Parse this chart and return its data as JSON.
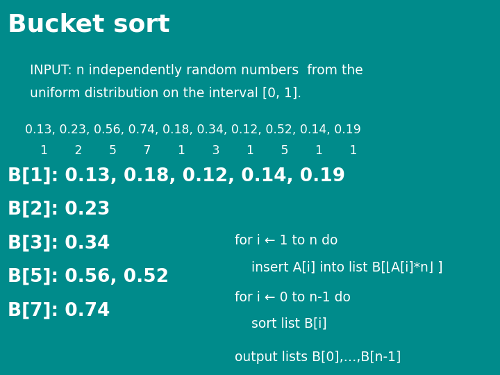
{
  "bg_color": "#008B8B",
  "title": "Bucket sort",
  "title_fontsize": 26,
  "input_line1": "INPUT: n independently random numbers  from the",
  "input_line2": "uniform distribution on the interval [0, 1].",
  "input_fontsize": 13.5,
  "numbers_line": "0.13, 0.23, 0.56, 0.74, 0.18, 0.34, 0.12, 0.52, 0.14, 0.19",
  "indices_line": "    1       2       5       7       1       3       1       5       1       1",
  "data_fontsize": 12.5,
  "bucket_lines": [
    "B[1]: 0.13, 0.18, 0.12, 0.14, 0.19",
    "B[2]: 0.23",
    "B[3]: 0.34",
    "B[5]: 0.56, 0.52",
    "B[7]: 0.74"
  ],
  "bucket_fontsize": 19,
  "algo_line1": "for i ← 1 to n do",
  "algo_line2": "    insert A[i] into list B[⌊A[i]*n⌋ ]",
  "algo_line3": "for i ← 0 to n-1 do",
  "algo_line4": "    sort list B[i]",
  "algo_line5": "output lists B[0],…,B[n-1]",
  "algo_fontsize": 13.5,
  "text_color": "#ffffff"
}
